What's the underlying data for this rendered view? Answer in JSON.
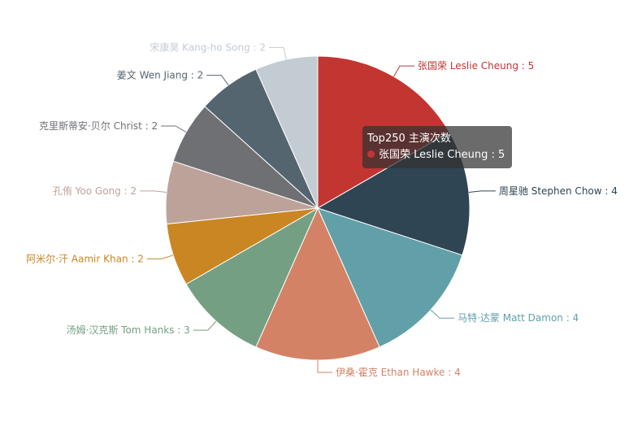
{
  "chart_data": {
    "type": "pie",
    "series_name": "Top250 主演次数",
    "slices": [
      {
        "name": "张国荣 Leslie Cheung",
        "value": 5,
        "color": "#c23531"
      },
      {
        "name": "周星驰 Stephen Chow",
        "value": 4,
        "color": "#2f4554"
      },
      {
        "name": "马特·达蒙 Matt Damon",
        "value": 4,
        "color": "#61a0a8"
      },
      {
        "name": "伊桑·霍克 Ethan Hawke",
        "value": 4,
        "color": "#d48265"
      },
      {
        "name": "汤姆·汉克斯 Tom Hanks",
        "value": 3,
        "color": "#749f83"
      },
      {
        "name": "阿米尔·汗 Aamir Khan",
        "value": 2,
        "color": "#ca8622"
      },
      {
        "name": "孔侑 Yoo Gong",
        "value": 2,
        "color": "#bda29a"
      },
      {
        "name": "克里斯蒂安·贝尔 Christ",
        "value": 2,
        "color": "#6e7074"
      },
      {
        "name": "姜文 Wen Jiang",
        "value": 2,
        "color": "#546570"
      },
      {
        "name": "宋康昊 Kang-ho Song",
        "value": 2,
        "color": "#c4ccd3"
      }
    ]
  },
  "tooltip": {
    "title": "Top250 主演次数",
    "item": "张国荣 Leslie Cheung : 5",
    "color": "#c23531"
  }
}
